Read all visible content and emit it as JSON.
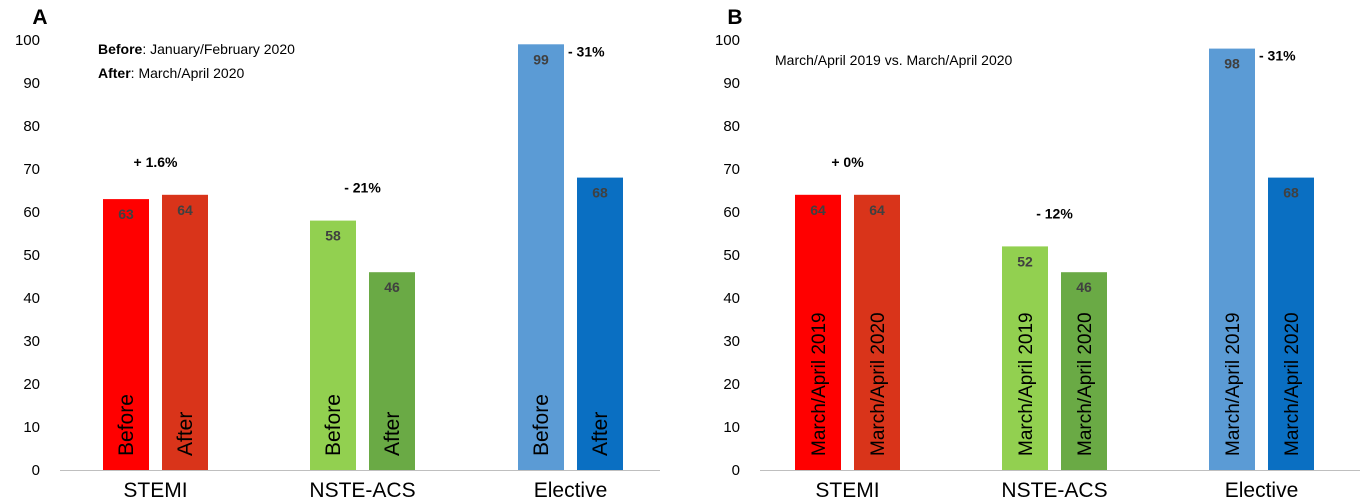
{
  "chart_data": [
    {
      "type": "bar",
      "panel": "A",
      "ylim": [
        0,
        100
      ],
      "yticks": [
        0,
        10,
        20,
        30,
        40,
        50,
        60,
        70,
        80,
        90,
        100
      ],
      "categories": [
        "STEMI",
        "NSTE-ACS",
        "Elective"
      ],
      "bar_labels": [
        "Before",
        "After"
      ],
      "values": [
        [
          63,
          64
        ],
        [
          58,
          46
        ],
        [
          99,
          68
        ]
      ],
      "changes": [
        "+ 1.6%",
        "- 21%",
        "- 31%"
      ],
      "notes": [
        {
          "bold": "Before",
          "text": ": January/February 2020"
        },
        {
          "bold": "After",
          "text": ": March/April 2020"
        }
      ],
      "colors": [
        [
          "#ff0000",
          "#d9341a"
        ],
        [
          "#92d050",
          "#6aaa45"
        ],
        [
          "#5b9bd5",
          "#0a6fc2"
        ]
      ]
    },
    {
      "type": "bar",
      "panel": "B",
      "ylim": [
        0,
        100
      ],
      "yticks": [
        0,
        10,
        20,
        30,
        40,
        50,
        60,
        70,
        80,
        90,
        100
      ],
      "categories": [
        "STEMI",
        "NSTE-ACS",
        "Elective"
      ],
      "bar_labels": [
        "March/April 2019",
        "March/April 2020"
      ],
      "values": [
        [
          64,
          64
        ],
        [
          52,
          46
        ],
        [
          98,
          68
        ]
      ],
      "changes": [
        "+ 0%",
        "- 12%",
        "- 31%"
      ],
      "notes": [
        {
          "bold": "",
          "text": "March/April 2019 vs. March/April 2020"
        }
      ],
      "colors": [
        [
          "#ff0000",
          "#d9341a"
        ],
        [
          "#92d050",
          "#6aaa45"
        ],
        [
          "#5b9bd5",
          "#0a6fc2"
        ]
      ]
    }
  ]
}
